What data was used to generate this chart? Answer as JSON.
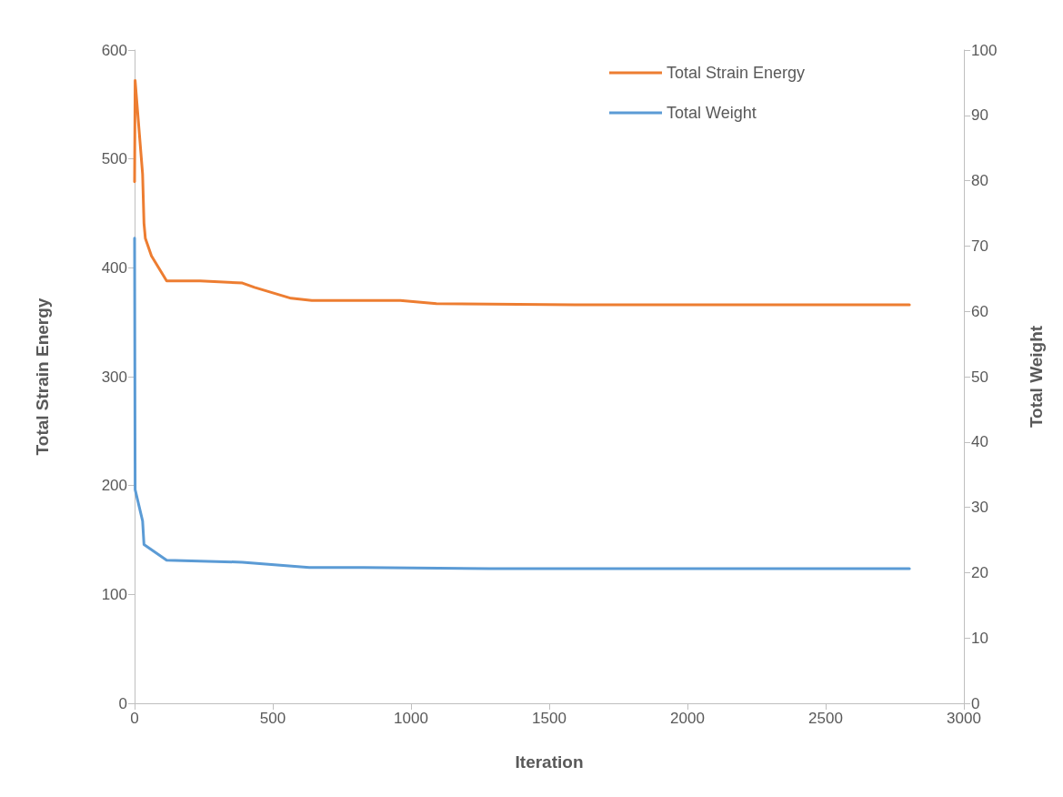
{
  "chart_data": {
    "type": "line",
    "xlabel": "Iteration",
    "ylabel": "Total Strain Energy",
    "y2label": "Total Weight",
    "xlim": [
      0,
      3000
    ],
    "xticks": [
      0,
      500,
      1000,
      1500,
      2000,
      2500,
      3000
    ],
    "ylim": [
      0,
      600
    ],
    "yticks": [
      0,
      100,
      200,
      300,
      400,
      500,
      600
    ],
    "y2lim": [
      0,
      100
    ],
    "y2ticks": [
      0,
      10,
      20,
      30,
      40,
      50,
      60,
      70,
      80,
      90,
      100
    ],
    "grid": false,
    "legend": "top right",
    "marker": "none",
    "line_style": "solid",
    "series": [
      {
        "name": "Total Strain Energy",
        "color": "#ed7d31",
        "x": [
          0,
          2,
          29,
          34,
          39,
          61,
          116,
          237,
          390,
          434,
          566,
          641,
          829,
          961,
          1092,
          1592,
          2803
        ],
        "values": [
          479,
          572,
          486,
          441,
          427,
          411,
          388,
          388,
          386,
          382,
          372,
          370,
          370,
          370,
          367,
          366,
          366
        ]
      },
      {
        "name": "Total Weight",
        "color": "#5b9bd5",
        "axis": "y2",
        "x": [
          0,
          2,
          29,
          34,
          116,
          390,
          632,
          829,
          1283,
          2803
        ],
        "values": [
          71.2,
          32.7,
          27.9,
          24.3,
          21.9,
          21.6,
          20.8,
          20.8,
          20.6,
          20.6
        ]
      }
    ]
  }
}
